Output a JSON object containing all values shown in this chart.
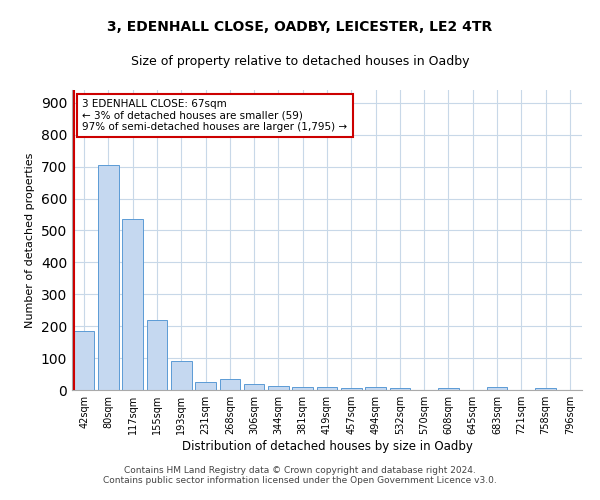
{
  "title1": "3, EDENHALL CLOSE, OADBY, LEICESTER, LE2 4TR",
  "title2": "Size of property relative to detached houses in Oadby",
  "xlabel": "Distribution of detached houses by size in Oadby",
  "ylabel": "Number of detached properties",
  "categories": [
    "42sqm",
    "80sqm",
    "117sqm",
    "155sqm",
    "193sqm",
    "231sqm",
    "268sqm",
    "306sqm",
    "344sqm",
    "381sqm",
    "419sqm",
    "457sqm",
    "494sqm",
    "532sqm",
    "570sqm",
    "608sqm",
    "645sqm",
    "683sqm",
    "721sqm",
    "758sqm",
    "796sqm"
  ],
  "values": [
    185,
    705,
    537,
    220,
    90,
    25,
    35,
    20,
    13,
    10,
    10,
    5,
    8,
    7,
    0,
    5,
    0,
    8,
    0,
    5,
    0
  ],
  "bar_color": "#c5d8f0",
  "bar_edge_color": "#5b9bd5",
  "highlight_color": "#cc0000",
  "annotation_text": "3 EDENHALL CLOSE: 67sqm\n← 3% of detached houses are smaller (59)\n97% of semi-detached houses are larger (1,795) →",
  "annotation_box_color": "#cc0000",
  "ylim": [
    0,
    940
  ],
  "yticks": [
    0,
    100,
    200,
    300,
    400,
    500,
    600,
    700,
    800,
    900
  ],
  "footer_line1": "Contains HM Land Registry data © Crown copyright and database right 2024.",
  "footer_line2": "Contains public sector information licensed under the Open Government Licence v3.0.",
  "bg_color": "#ffffff",
  "grid_color": "#c8d8e8"
}
